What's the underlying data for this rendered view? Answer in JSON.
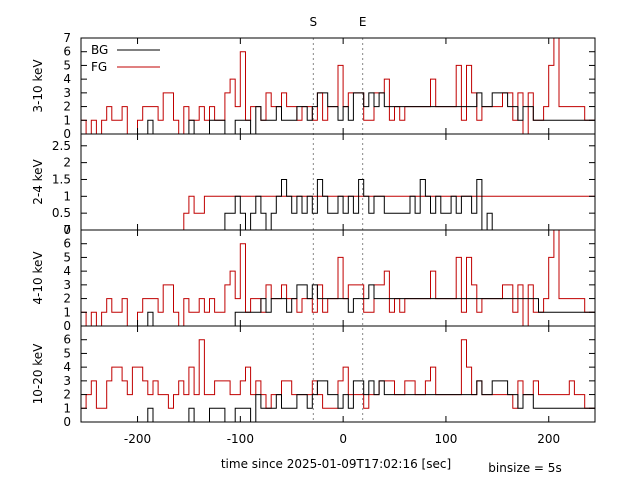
{
  "chart_data": {
    "type": "line",
    "style": "step-histogram",
    "xlabel": "time since 2025-01-09T17:02:16 [sec]",
    "binsize_label": "binsize = 5s",
    "xlim": [
      -255,
      245
    ],
    "x_ticks": [
      -200,
      -100,
      0,
      100,
      200
    ],
    "markers": [
      {
        "label": "S",
        "x": -29
      },
      {
        "label": "E",
        "x": 19
      }
    ],
    "legend": [
      {
        "name": "BG",
        "color": "#000000"
      },
      {
        "name": "FG",
        "color": "#c00000"
      }
    ],
    "colors": {
      "BG": "#000000",
      "FG": "#c00000",
      "marker_line": "#888888"
    },
    "binsize": 5,
    "bin_start": -255,
    "panels": [
      {
        "ylabel": "3-10 keV",
        "ylim": [
          0,
          7
        ],
        "y_ticks": [
          0,
          1,
          2,
          3,
          4,
          5,
          6,
          7
        ],
        "series": [
          {
            "name": "BG",
            "values": [
              0,
              0,
              0,
              0,
              0,
              0,
              0,
              0,
              0,
              0,
              0,
              0,
              0,
              1,
              0,
              0,
              0,
              0,
              0,
              0,
              0,
              1,
              0,
              0,
              0,
              1,
              1,
              1,
              0,
              0,
              1,
              1,
              1,
              0,
              2,
              1,
              1,
              1,
              2,
              1,
              1,
              1,
              2,
              2,
              1,
              2,
              3,
              3,
              2,
              2,
              1,
              2,
              1,
              3,
              3,
              2,
              3,
              2,
              3,
              2,
              2,
              2,
              2,
              2,
              2,
              2,
              2,
              2,
              2,
              2,
              2,
              2,
              2,
              2,
              2,
              2,
              2,
              3,
              2,
              2,
              3,
              3,
              3,
              2,
              2,
              1,
              2,
              2,
              1,
              1,
              1,
              1,
              1,
              1,
              1,
              1,
              1,
              1,
              1,
              1
            ]
          },
          {
            "name": "FG",
            "values": [
              1,
              0,
              1,
              0,
              1,
              2,
              1,
              1,
              2,
              0,
              0,
              1,
              2,
              2,
              2,
              1,
              3,
              3,
              1,
              0,
              2,
              1,
              1,
              2,
              1,
              2,
              1,
              1,
              3,
              4,
              2,
              6,
              1,
              2,
              2,
              1,
              3,
              2,
              2,
              3,
              2,
              2,
              1,
              2,
              2,
              1,
              3,
              1,
              2,
              2,
              5,
              2,
              3,
              3,
              3,
              1,
              1,
              3,
              3,
              4,
              1,
              2,
              1,
              2,
              2,
              2,
              2,
              2,
              4,
              2,
              2,
              2,
              2,
              5,
              1,
              5,
              3,
              1,
              2,
              2,
              2,
              2,
              3,
              3,
              1,
              3,
              0,
              3,
              1,
              1,
              2,
              5,
              7,
              2,
              2,
              2,
              2,
              2,
              1,
              1
            ]
          }
        ]
      },
      {
        "ylabel": "2-4 keV",
        "ylim": [
          0,
          2.85
        ],
        "y_ticks": [
          0,
          0.5,
          1,
          1.5,
          2,
          2.5
        ],
        "series": [
          {
            "name": "BG",
            "values": [
              0,
              0,
              0,
              0,
              0,
              0,
              0,
              0,
              0,
              0,
              0,
              0,
              0,
              0,
              0,
              0,
              0,
              0,
              0,
              0,
              0,
              0,
              0,
              0,
              0,
              0,
              0,
              0,
              0.5,
              0.5,
              1,
              0.5,
              0,
              0.5,
              1,
              0.5,
              0,
              0.5,
              1,
              1.5,
              1,
              0.5,
              1,
              0.5,
              1,
              0.5,
              1.5,
              1,
              0.5,
              0.5,
              1,
              0.5,
              1,
              0.5,
              1.5,
              1,
              0.5,
              1,
              1,
              0.5,
              0.5,
              0.5,
              0.5,
              0.5,
              1,
              0.5,
              1.5,
              1,
              0.5,
              1,
              0.5,
              0.5,
              1,
              0.5,
              1,
              1,
              0.5,
              1.5,
              0,
              0.5,
              0,
              0,
              0,
              0,
              0,
              0,
              0,
              0,
              0,
              0,
              0,
              0,
              0,
              0,
              0,
              0,
              0,
              0,
              0,
              0
            ]
          },
          {
            "name": "FG",
            "values": [
              0,
              0,
              0,
              0,
              0,
              0,
              0,
              0,
              0,
              0,
              0,
              0,
              0,
              0,
              0,
              0,
              0,
              0,
              0,
              0,
              0.5,
              1,
              0.5,
              0.5,
              1,
              1,
              1,
              1,
              1,
              1,
              1,
              1,
              1,
              1,
              1,
              1,
              1,
              1,
              1,
              1,
              1,
              1,
              1,
              1,
              1,
              1,
              1,
              1,
              1,
              1,
              1,
              1,
              1,
              1,
              1,
              1,
              1,
              1,
              1,
              1,
              1,
              1,
              1,
              1,
              1,
              1,
              1,
              1,
              1,
              1,
              1,
              1,
              1,
              1,
              1,
              1,
              1,
              1,
              1,
              1,
              1,
              1,
              1,
              1,
              1,
              1,
              1,
              1,
              1,
              1,
              1,
              1,
              1,
              1,
              1,
              1,
              1,
              1,
              1,
              1
            ]
          }
        ]
      },
      {
        "ylabel": "4-10 keV",
        "ylim": [
          0,
          7
        ],
        "y_ticks": [
          0,
          1,
          2,
          3,
          4,
          5,
          6,
          7
        ],
        "series": [
          {
            "name": "BG",
            "values": [
              0,
              0,
              0,
              0,
              0,
              0,
              0,
              0,
              0,
              0,
              0,
              0,
              0,
              1,
              0,
              0,
              0,
              0,
              0,
              0,
              0,
              0,
              0,
              0,
              0,
              0,
              0,
              0,
              0,
              0,
              1,
              1,
              1,
              1,
              1,
              2,
              1,
              2,
              2,
              2,
              1,
              2,
              3,
              3,
              2,
              3,
              2,
              2,
              2,
              2,
              2,
              2,
              1,
              2,
              2,
              2,
              3,
              2,
              2,
              2,
              2,
              2,
              2,
              2,
              2,
              2,
              2,
              2,
              2,
              2,
              2,
              2,
              2,
              2,
              2,
              2,
              2,
              2,
              2,
              2,
              2,
              2,
              2,
              2,
              2,
              2,
              2,
              2,
              2,
              1,
              1,
              1,
              1,
              1,
              1,
              1,
              1,
              1,
              1,
              1
            ]
          },
          {
            "name": "FG",
            "values": [
              1,
              0,
              1,
              0,
              1,
              2,
              1,
              1,
              2,
              0,
              0,
              1,
              2,
              2,
              2,
              1,
              3,
              3,
              1,
              0,
              2,
              1,
              1,
              2,
              1,
              2,
              1,
              1,
              3,
              4,
              2,
              6,
              1,
              2,
              2,
              1,
              3,
              2,
              2,
              3,
              2,
              2,
              1,
              2,
              2,
              1,
              3,
              1,
              2,
              2,
              5,
              2,
              3,
              3,
              3,
              1,
              1,
              3,
              3,
              4,
              1,
              2,
              1,
              2,
              2,
              2,
              2,
              2,
              4,
              2,
              2,
              2,
              2,
              5,
              1,
              5,
              3,
              1,
              2,
              2,
              2,
              2,
              3,
              3,
              1,
              3,
              0,
              3,
              1,
              1,
              2,
              5,
              7,
              2,
              2,
              2,
              2,
              2,
              1,
              1
            ]
          }
        ]
      },
      {
        "ylabel": "10-20 keV",
        "ylim": [
          0,
          7
        ],
        "y_ticks": [
          0,
          1,
          2,
          3,
          4,
          5,
          6
        ],
        "series": [
          {
            "name": "BG",
            "values": [
              0,
              0,
              0,
              0,
              0,
              0,
              0,
              0,
              0,
              0,
              0,
              0,
              0,
              1,
              0,
              0,
              0,
              0,
              0,
              0,
              0,
              1,
              0,
              0,
              0,
              1,
              1,
              1,
              0,
              0,
              1,
              1,
              1,
              0,
              2,
              1,
              1,
              1,
              2,
              1,
              1,
              1,
              2,
              2,
              1,
              2,
              3,
              3,
              2,
              2,
              1,
              2,
              1,
              3,
              3,
              2,
              3,
              2,
              3,
              2,
              2,
              2,
              2,
              2,
              2,
              2,
              2,
              2,
              2,
              2,
              2,
              2,
              2,
              2,
              2,
              2,
              2,
              3,
              2,
              2,
              3,
              3,
              3,
              2,
              2,
              1,
              2,
              2,
              1,
              1,
              1,
              1,
              1,
              1,
              1,
              1,
              1,
              1,
              1,
              1
            ]
          },
          {
            "name": "FG",
            "values": [
              1,
              2,
              3,
              1,
              1,
              3,
              4,
              4,
              3,
              2,
              4,
              4,
              3,
              2,
              3,
              2,
              2,
              1,
              2,
              3,
              2,
              4,
              2,
              6,
              2,
              2,
              3,
              3,
              3,
              2,
              2,
              3,
              4,
              2,
              3,
              2,
              1,
              2,
              2,
              3,
              3,
              2,
              2,
              2,
              2,
              3,
              2,
              1,
              1,
              1,
              3,
              4,
              2,
              2,
              2,
              1,
              2,
              2,
              3,
              3,
              3,
              2,
              2,
              3,
              3,
              2,
              2,
              3,
              4,
              2,
              2,
              2,
              2,
              2,
              6,
              4,
              2,
              3,
              2,
              2,
              2,
              2,
              2,
              2,
              1,
              3,
              2,
              2,
              3,
              2,
              2,
              2,
              2,
              2,
              2,
              3,
              2,
              2,
              1,
              1
            ]
          }
        ]
      }
    ]
  }
}
